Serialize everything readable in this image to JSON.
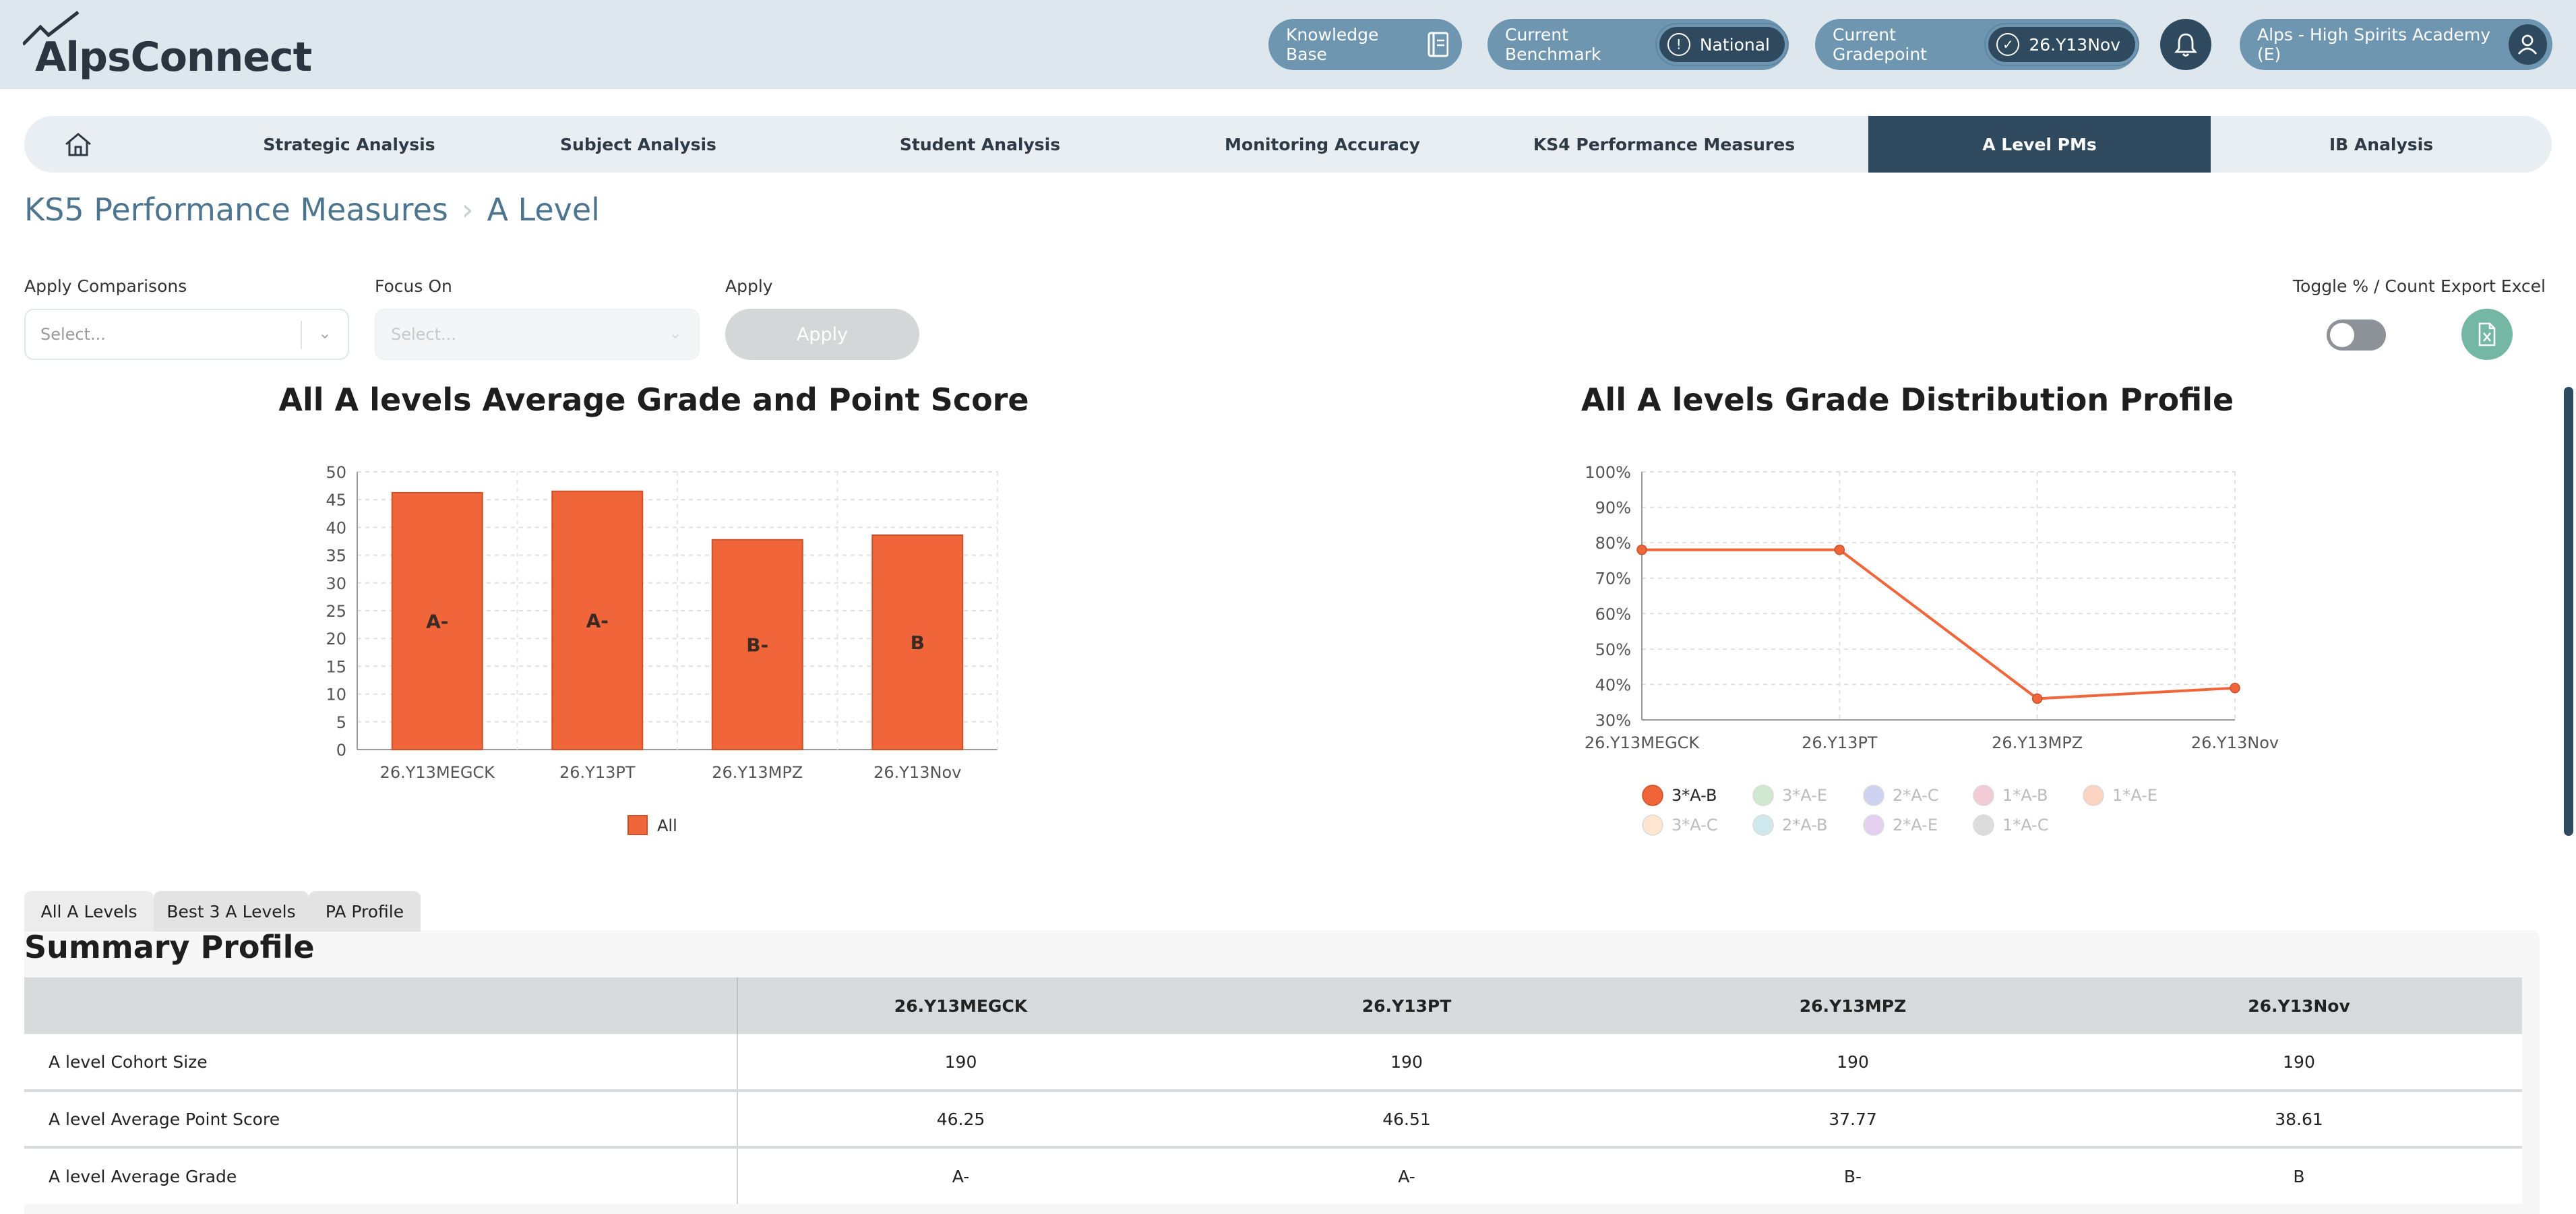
{
  "header": {
    "logo_text_a": "Alps",
    "logo_text_b": "Connect",
    "knowledge_base": "Knowledge Base",
    "benchmark_label": "Current Benchmark",
    "benchmark_value": "National",
    "gradepoint_label": "Current Gradepoint",
    "gradepoint_value": "26.Y13Nov",
    "school": "Alps - High Spirits Academy (E)"
  },
  "nav": {
    "tabs": [
      "Strategic Analysis",
      "Subject Analysis",
      "Student Analysis",
      "Monitoring Accuracy",
      "KS4 Performance Measures",
      "A Level PMs",
      "IB Analysis"
    ],
    "active": "A Level PMs"
  },
  "breadcrumb": {
    "parent": "KS5 Performance Measures",
    "current": "A Level"
  },
  "filters": {
    "comparisons_label": "Apply Comparisons",
    "comparisons_placeholder": "Select...",
    "focus_label": "Focus On",
    "focus_placeholder": "Select...",
    "apply_label": "Apply",
    "apply_button": "Apply",
    "toggle_label": "Toggle % / Count",
    "export_label": "Export Excel"
  },
  "colors": {
    "bar": "#f0663a",
    "accent": "#2f4a5e",
    "pill": "#6e96b1"
  },
  "chart_data": [
    {
      "type": "bar",
      "title": "All A levels Average Grade and Point Score",
      "categories": [
        "26.Y13MEGCK",
        "26.Y13PT",
        "26.Y13MPZ",
        "26.Y13Nov"
      ],
      "series": [
        {
          "name": "All",
          "values": [
            46.25,
            46.51,
            37.77,
            38.61
          ],
          "labels": [
            "A-",
            "A-",
            "B-",
            "B"
          ]
        }
      ],
      "ylim": [
        0,
        50
      ],
      "yticks": [
        0,
        5,
        10,
        15,
        20,
        25,
        30,
        35,
        40,
        45,
        50
      ],
      "grid": true,
      "legend": "bottom"
    },
    {
      "type": "line",
      "title": "All A levels Grade Distribution Profile",
      "x": [
        "26.Y13MEGCK",
        "26.Y13PT",
        "26.Y13MPZ",
        "26.Y13Nov"
      ],
      "series": [
        {
          "name": "3*A-B",
          "values": [
            78,
            78,
            36,
            39
          ]
        }
      ],
      "ylim": [
        30,
        100
      ],
      "yticks": [
        "30%",
        "40%",
        "50%",
        "60%",
        "70%",
        "80%",
        "90%",
        "100%"
      ],
      "grid": true,
      "legend": "bottom",
      "legend_items": [
        {
          "name": "3*A-B",
          "color": "#f0663a",
          "active": true
        },
        {
          "name": "3*A-E",
          "color": "#cfe8cf",
          "active": false
        },
        {
          "name": "2*A-C",
          "color": "#cfd3f2",
          "active": false
        },
        {
          "name": "1*A-B",
          "color": "#f2cbd7",
          "active": false
        },
        {
          "name": "1*A-E",
          "color": "#fad3c2",
          "active": false
        },
        {
          "name": "3*A-C",
          "color": "#fde5cf",
          "active": false
        },
        {
          "name": "2*A-B",
          "color": "#cfe8ee",
          "active": false
        },
        {
          "name": "2*A-E",
          "color": "#e6d0f0",
          "active": false
        },
        {
          "name": "1*A-C",
          "color": "#dcdcdc",
          "active": false
        }
      ]
    }
  ],
  "subtabs": [
    "All A Levels",
    "Best 3 A Levels",
    "PA Profile"
  ],
  "summary": {
    "title": "Summary Profile",
    "columns": [
      "",
      "26.Y13MEGCK",
      "26.Y13PT",
      "26.Y13MPZ",
      "26.Y13Nov"
    ],
    "rows": [
      [
        "A level Cohort Size",
        "190",
        "190",
        "190",
        "190"
      ],
      [
        "A level Average Point Score",
        "46.25",
        "46.51",
        "37.77",
        "38.61"
      ],
      [
        "A level Average Grade",
        "A-",
        "A-",
        "B-",
        "B"
      ]
    ]
  }
}
